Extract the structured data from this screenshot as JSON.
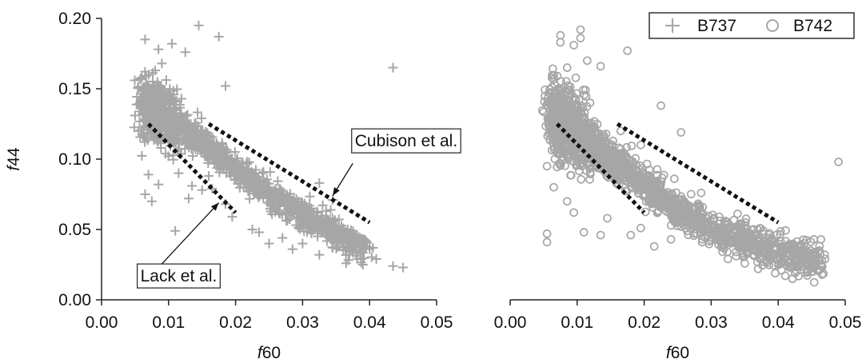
{
  "chart_data": [
    {
      "type": "scatter",
      "panel": "left",
      "xlabel_prefix": "f",
      "xlabel_suffix": "60",
      "ylabel_prefix": "f",
      "ylabel_suffix": "44",
      "xlim": [
        0.0,
        0.05
      ],
      "ylim": [
        0.0,
        0.2
      ],
      "xticks": [
        "0.00",
        "0.01",
        "0.02",
        "0.03",
        "0.04",
        "0.05"
      ],
      "yticks": [
        "0.00",
        "0.05",
        "0.10",
        "0.15",
        "0.20"
      ],
      "series": [
        {
          "name": "B737",
          "marker": "plus",
          "color": "#a6a6a6",
          "band": [
            [
              0.006,
              0.14
            ],
            [
              0.01,
              0.128
            ],
            [
              0.015,
              0.112
            ],
            [
              0.02,
              0.093
            ],
            [
              0.025,
              0.076
            ],
            [
              0.03,
              0.06
            ],
            [
              0.035,
              0.047
            ],
            [
              0.04,
              0.036
            ]
          ],
          "points": [
            [
              0.0065,
              0.185
            ],
            [
              0.0085,
              0.178
            ],
            [
              0.0105,
              0.182
            ],
            [
              0.0125,
              0.176
            ],
            [
              0.0145,
              0.195
            ],
            [
              0.0175,
              0.187
            ],
            [
              0.0185,
              0.152
            ],
            [
              0.0435,
              0.165
            ],
            [
              0.009,
              0.168
            ],
            [
              0.008,
              0.163
            ],
            [
              0.006,
              0.158
            ],
            [
              0.007,
              0.152
            ],
            [
              0.0075,
              0.07
            ],
            [
              0.0065,
              0.075
            ],
            [
              0.011,
              0.049
            ],
            [
              0.0085,
              0.082
            ],
            [
              0.0055,
              0.12
            ],
            [
              0.005,
              0.131
            ],
            [
              0.007,
              0.089
            ],
            [
              0.0115,
              0.09
            ],
            [
              0.013,
              0.072
            ],
            [
              0.0135,
              0.081
            ],
            [
              0.015,
              0.078
            ],
            [
              0.0165,
              0.079
            ],
            [
              0.016,
              0.088
            ],
            [
              0.0185,
              0.068
            ],
            [
              0.0195,
              0.059
            ],
            [
              0.0225,
              0.05
            ],
            [
              0.0235,
              0.048
            ],
            [
              0.027,
              0.044
            ],
            [
              0.03,
              0.04
            ],
            [
              0.0345,
              0.037
            ],
            [
              0.0375,
              0.034
            ],
            [
              0.041,
              0.029
            ],
            [
              0.0435,
              0.024
            ],
            [
              0.045,
              0.023
            ],
            [
              0.039,
              0.025
            ],
            [
              0.0365,
              0.026
            ],
            [
              0.0325,
              0.032
            ],
            [
              0.0285,
              0.036
            ],
            [
              0.025,
              0.04
            ],
            [
              0.0335,
              0.063
            ],
            [
              0.0345,
              0.071
            ],
            [
              0.0325,
              0.083
            ],
            [
              0.04,
              0.036
            ],
            [
              0.0405,
              0.037
            ],
            [
              0.0395,
              0.038
            ]
          ]
        }
      ],
      "annotations": [
        {
          "name": "Cubison et al.",
          "label": "Cubison et al.",
          "line_from": [
            0.016,
            0.125
          ],
          "line_to": [
            0.04,
            0.055
          ],
          "arrow_from": [
            0.0375,
            0.097
          ],
          "arrow_to": [
            0.0345,
            0.074
          ],
          "label_anchor": [
            0.0378,
            0.109
          ]
        },
        {
          "name": "Lack et al.",
          "label": "Lack et al.",
          "line_from": [
            0.007,
            0.125
          ],
          "line_to": [
            0.02,
            0.062
          ],
          "arrow_from": [
            0.0085,
            0.023
          ],
          "arrow_to": [
            0.0175,
            0.069
          ],
          "label_anchor": [
            0.0058,
            0.013
          ]
        }
      ]
    },
    {
      "type": "scatter",
      "panel": "right",
      "xlabel_prefix": "f",
      "xlabel_suffix": "60",
      "xlim": [
        0.0,
        0.05
      ],
      "ylim": [
        0.0,
        0.2
      ],
      "xticks": [
        "0.00",
        "0.01",
        "0.02",
        "0.03",
        "0.04",
        "0.05"
      ],
      "series": [
        {
          "name": "B742",
          "marker": "circle",
          "color": "#a6a6a6",
          "band": [
            [
              0.006,
              0.13
            ],
            [
              0.01,
              0.12
            ],
            [
              0.015,
              0.1
            ],
            [
              0.02,
              0.082
            ],
            [
              0.025,
              0.065
            ],
            [
              0.03,
              0.05
            ],
            [
              0.035,
              0.042
            ],
            [
              0.04,
              0.034
            ],
            [
              0.047,
              0.028
            ]
          ],
          "points": [
            [
              0.0075,
              0.188
            ],
            [
              0.0105,
              0.192
            ],
            [
              0.0105,
              0.186
            ],
            [
              0.0075,
              0.183
            ],
            [
              0.0095,
              0.181
            ],
            [
              0.0115,
              0.17
            ],
            [
              0.0085,
              0.165
            ],
            [
              0.0175,
              0.177
            ],
            [
              0.0135,
              0.166
            ],
            [
              0.0225,
              0.138
            ],
            [
              0.0255,
              0.119
            ],
            [
              0.049,
              0.098
            ],
            [
              0.0055,
              0.047
            ],
            [
              0.0055,
              0.041
            ],
            [
              0.011,
              0.048
            ],
            [
              0.0135,
              0.046
            ],
            [
              0.0065,
              0.08
            ],
            [
              0.0085,
              0.07
            ],
            [
              0.0095,
              0.062
            ],
            [
              0.0075,
              0.097
            ],
            [
              0.0055,
              0.095
            ],
            [
              0.0145,
              0.058
            ],
            [
              0.018,
              0.046
            ],
            [
              0.0195,
              0.051
            ],
            [
              0.0215,
              0.038
            ],
            [
              0.024,
              0.043
            ],
            [
              0.0285,
              0.076
            ],
            [
              0.0305,
              0.052
            ],
            [
              0.0325,
              0.029
            ],
            [
              0.037,
              0.022
            ],
            [
              0.0405,
              0.021
            ],
            [
              0.0455,
              0.026
            ],
            [
              0.047,
              0.029
            ],
            [
              0.0435,
              0.032
            ],
            [
              0.0385,
              0.038
            ],
            [
              0.0345,
              0.043
            ],
            [
              0.0285,
              0.048
            ],
            [
              0.0255,
              0.058
            ],
            [
              0.0245,
              0.086
            ],
            [
              0.0215,
              0.076
            ],
            [
              0.0165,
              0.12
            ],
            [
              0.0195,
              0.11
            ],
            [
              0.0155,
              0.092
            ],
            [
              0.0125,
              0.104
            ]
          ]
        }
      ],
      "annotations": [
        {
          "name": "dashed-upper",
          "line_from": [
            0.016,
            0.125
          ],
          "line_to": [
            0.04,
            0.055
          ]
        },
        {
          "name": "dashed-lower",
          "line_from": [
            0.007,
            0.125
          ],
          "line_to": [
            0.02,
            0.062
          ]
        }
      ]
    }
  ],
  "legend": {
    "items": [
      {
        "label": "B737",
        "marker": "plus"
      },
      {
        "label": "B742",
        "marker": "circle"
      }
    ],
    "placement": "top-right"
  }
}
